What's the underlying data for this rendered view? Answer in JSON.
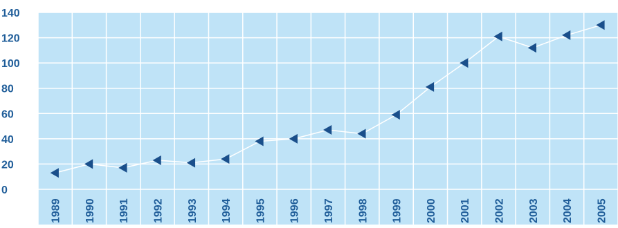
{
  "chart_data": {
    "type": "line",
    "title": "",
    "xlabel": "",
    "ylabel": "",
    "categories": [
      "1989",
      "1990",
      "1991",
      "1992",
      "1993",
      "1994",
      "1995",
      "1996",
      "1997",
      "1998",
      "1999",
      "2000",
      "2001",
      "2002",
      "2003",
      "2004",
      "2005"
    ],
    "series": [
      {
        "values": [
          13,
          20,
          17,
          23,
          21,
          24,
          38,
          40,
          47,
          44,
          59,
          81,
          100,
          121,
          112,
          122,
          130
        ]
      }
    ],
    "y_ticks": [
      "0",
      "20",
      "40",
      "60",
      "80",
      "100",
      "120",
      "140"
    ],
    "ylim": [
      0,
      140
    ],
    "grid": true,
    "legend": "none",
    "colors": {
      "plot_background": "#bfe3f7",
      "grid": "#ffffff",
      "line": "#ffffff",
      "marker": "#1a4f8b",
      "text": "#1f5d99"
    },
    "marker_shape": "triangle-left"
  }
}
